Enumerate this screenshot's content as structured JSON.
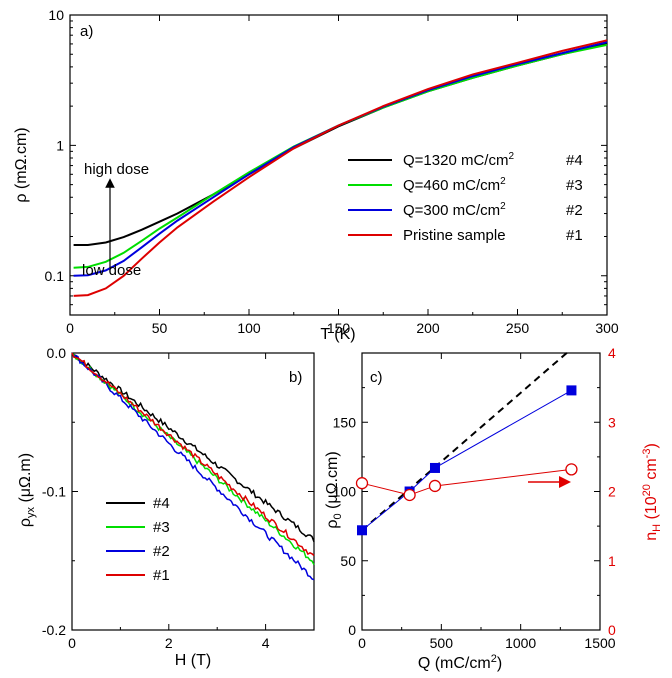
{
  "chart_data": [
    {
      "id": "a",
      "type": "line",
      "panel_label": "a)",
      "xlabel": "T (K)",
      "ylabel": "ρ (mΩ.cm)",
      "xlim": [
        0,
        300
      ],
      "ylim": [
        0.05,
        10
      ],
      "yscale": "log",
      "xticks": [
        0,
        50,
        100,
        150,
        200,
        250,
        300
      ],
      "yticks": [
        {
          "v": 0.1,
          "label": "0.1"
        },
        {
          "v": 1,
          "label": "1"
        },
        {
          "v": 10,
          "label": "10"
        }
      ],
      "legend_position": "right",
      "annotations": {
        "high": "high dose",
        "low": "low dose"
      },
      "series": [
        {
          "name": "Q=1320 mC/cm",
          "sup": "2",
          "tag": "#4",
          "color": "#000000",
          "x": [
            2,
            10,
            20,
            30,
            40,
            50,
            60,
            80,
            100,
            125,
            150,
            175,
            200,
            225,
            250,
            275,
            300
          ],
          "y": [
            0.172,
            0.172,
            0.18,
            0.198,
            0.225,
            0.26,
            0.3,
            0.42,
            0.6,
            0.95,
            1.4,
            1.95,
            2.6,
            3.3,
            4.1,
            5.0,
            6.0
          ]
        },
        {
          "name": "Q=460 mC/cm",
          "sup": "2",
          "tag": "#3",
          "color": "#00dd00",
          "x": [
            2,
            10,
            20,
            30,
            40,
            50,
            60,
            80,
            100,
            125,
            150,
            175,
            200,
            225,
            250,
            275,
            300
          ],
          "y": [
            0.115,
            0.117,
            0.128,
            0.15,
            0.185,
            0.23,
            0.28,
            0.42,
            0.62,
            0.98,
            1.42,
            1.95,
            2.6,
            3.3,
            4.1,
            5.0,
            5.9
          ]
        },
        {
          "name": "Q=300 mC/cm",
          "sup": "2",
          "tag": "#2",
          "color": "#0000dd",
          "x": [
            2,
            10,
            20,
            30,
            40,
            50,
            60,
            80,
            100,
            125,
            150,
            175,
            200,
            225,
            250,
            275,
            300
          ],
          "y": [
            0.1,
            0.101,
            0.11,
            0.13,
            0.165,
            0.21,
            0.265,
            0.4,
            0.6,
            0.97,
            1.42,
            1.98,
            2.65,
            3.4,
            4.2,
            5.1,
            6.2
          ]
        },
        {
          "name": "Pristine sample",
          "sup": "",
          "tag": "#1",
          "color": "#dd0000",
          "x": [
            2,
            10,
            20,
            30,
            40,
            50,
            60,
            80,
            100,
            125,
            150,
            175,
            200,
            225,
            250,
            275,
            300
          ],
          "y": [
            0.07,
            0.071,
            0.08,
            0.1,
            0.135,
            0.18,
            0.235,
            0.37,
            0.57,
            0.95,
            1.42,
            2.0,
            2.7,
            3.5,
            4.3,
            5.3,
            6.4
          ]
        }
      ]
    },
    {
      "id": "b",
      "type": "line",
      "panel_label": "b)",
      "xlabel": "H (T)",
      "ylabel_main": "ρ",
      "ylabel_sub": "yx",
      "ylabel_rest": " (μΩ.m)",
      "xlim": [
        0,
        5
      ],
      "ylim": [
        -0.2,
        0
      ],
      "xticks": [
        {
          "v": 0,
          "label": "0"
        },
        {
          "v": 2,
          "label": "2"
        },
        {
          "v": 4,
          "label": "4"
        }
      ],
      "yticks": [
        {
          "v": 0,
          "label": "0.0"
        },
        {
          "v": -0.1,
          "label": "-0.1"
        },
        {
          "v": -0.2,
          "label": "-0.2"
        }
      ],
      "legend_position": "left",
      "series": [
        {
          "name": "#4",
          "color": "#000000",
          "x": [
            0,
            5
          ],
          "y": [
            0,
            -0.135
          ]
        },
        {
          "name": "#3",
          "color": "#00dd00",
          "x": [
            0,
            5
          ],
          "y": [
            0,
            -0.151
          ]
        },
        {
          "name": "#2",
          "color": "#0000dd",
          "x": [
            0,
            5
          ],
          "y": [
            0,
            -0.163
          ]
        },
        {
          "name": "#1",
          "color": "#dd0000",
          "x": [
            0,
            5
          ],
          "y": [
            0,
            -0.147
          ]
        }
      ]
    },
    {
      "id": "c",
      "type": "scatter",
      "panel_label": "c)",
      "xlabel_main": "Q (mC/cm",
      "xlabel_sup": "2",
      "xlabel_end": ")",
      "ylabel_main": "ρ",
      "ylabel_sub": "0",
      "ylabel_rest": " (μΩ.cm)",
      "y2label_main": "n",
      "y2label_sub": "H",
      "y2label_mid": " (10",
      "y2label_sup": "20",
      "y2label_rest2": " cm",
      "y2label_sup2": "-3",
      "y2label_end": ")",
      "xlim": [
        0,
        1500
      ],
      "ylim": [
        0,
        200
      ],
      "y2lim": [
        0,
        4
      ],
      "xticks": [
        {
          "v": 0,
          "label": "0"
        },
        {
          "v": 500,
          "label": "500"
        },
        {
          "v": 1000,
          "label": "1000"
        },
        {
          "v": 1500,
          "label": "1500"
        }
      ],
      "yticks": [
        {
          "v": 0,
          "label": "0"
        },
        {
          "v": 50,
          "label": "50"
        },
        {
          "v": 100,
          "label": "100"
        },
        {
          "v": 150,
          "label": "150"
        }
      ],
      "y2ticks": [
        {
          "v": 0,
          "label": "0"
        },
        {
          "v": 1,
          "label": "1"
        },
        {
          "v": 2,
          "label": "2"
        },
        {
          "v": 3,
          "label": "3"
        },
        {
          "v": 4,
          "label": "4"
        }
      ],
      "series": [
        {
          "name": "ρ0",
          "color": "#0000dd",
          "marker": "filled-square",
          "x": [
            0,
            300,
            460,
            1320
          ],
          "y": [
            72,
            100,
            117,
            173
          ]
        },
        {
          "name": "nH",
          "color": "#dd0000",
          "marker": "open-circle",
          "axis": "right",
          "x": [
            0,
            300,
            460,
            1320
          ],
          "y": [
            2.12,
            1.95,
            2.08,
            2.32
          ]
        },
        {
          "name": "linear fit",
          "color": "#000000",
          "style": "dashed",
          "x": [
            0,
            1300
          ],
          "y": [
            72,
            201
          ]
        }
      ]
    }
  ]
}
